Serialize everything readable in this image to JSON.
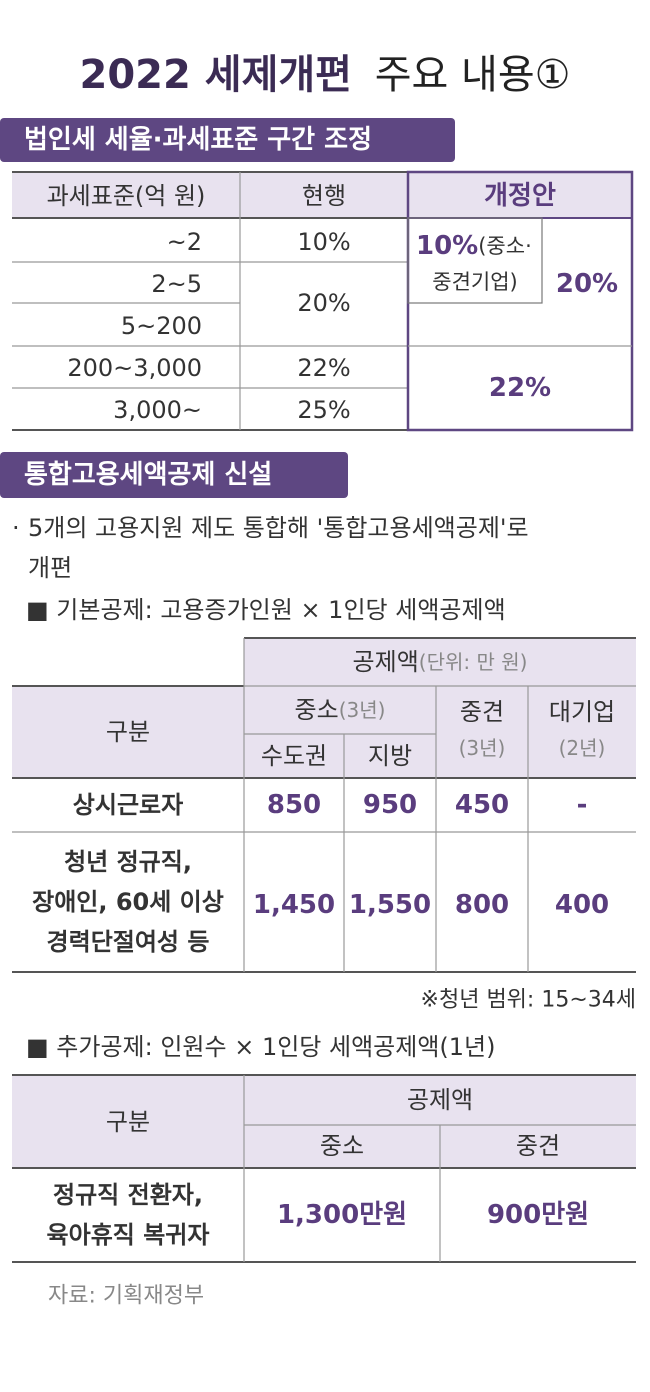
{
  "header": {
    "title_bold": "2022 세제개편",
    "title_rest": "주요 내용①"
  },
  "section1": {
    "heading": "법인세 세율·과세표준 구간 조정",
    "table": {
      "columns": [
        "과세표준(억 원)",
        "현행",
        "개정안"
      ],
      "brackets": [
        "~2",
        "2~5",
        "5~200",
        "200~3,000",
        "3,000~"
      ],
      "current": [
        "10%",
        "20%",
        "22%",
        "25%"
      ],
      "revised": {
        "small_mid": [
          "10%",
          "(중소·",
          "중견기업)"
        ],
        "general": "20%",
        "upper": "22%"
      }
    }
  },
  "section2": {
    "heading": "통합고용세액공제 신설",
    "bullet": "·",
    "bullet_lines": [
      "5개의 고용지원 제도 통합해 '통합고용세액공제'로",
      "개편"
    ],
    "basic_title": "■ 기본공제: 고용증가인원 × 1인당 세액공제액",
    "basic_table": {
      "header": "공제액",
      "unit": "(단위: 만 원)",
      "row_header": "구분",
      "groups": [
        {
          "name": "중소",
          "period": "(3년)",
          "subs": [
            "수도권",
            "지방"
          ]
        },
        {
          "name": "중견",
          "period": "(3년)"
        },
        {
          "name": "대기업",
          "period": "(2년)"
        }
      ],
      "rows": [
        {
          "label": [
            "상시근로자"
          ],
          "values": [
            "850",
            "950",
            "450",
            "-"
          ]
        },
        {
          "label": [
            "청년 정규직,",
            "장애인, 60세 이상",
            "경력단절여성 등"
          ],
          "values": [
            "1,450",
            "1,550",
            "800",
            "400"
          ]
        }
      ]
    },
    "note": "※청년 범위: 15~34세",
    "additional_title": "■ 추가공제: 인원수 × 1인당 세액공제액(1년)",
    "additional_table": {
      "row_header": "구분",
      "header": "공제액",
      "columns": [
        "중소",
        "중견"
      ],
      "rows": [
        {
          "label": [
            "정규직 전환자,",
            "육아휴직 복귀자"
          ],
          "values": [
            "1,300만원",
            "900만원"
          ]
        }
      ]
    }
  },
  "source": "자료: 기획재정부"
}
